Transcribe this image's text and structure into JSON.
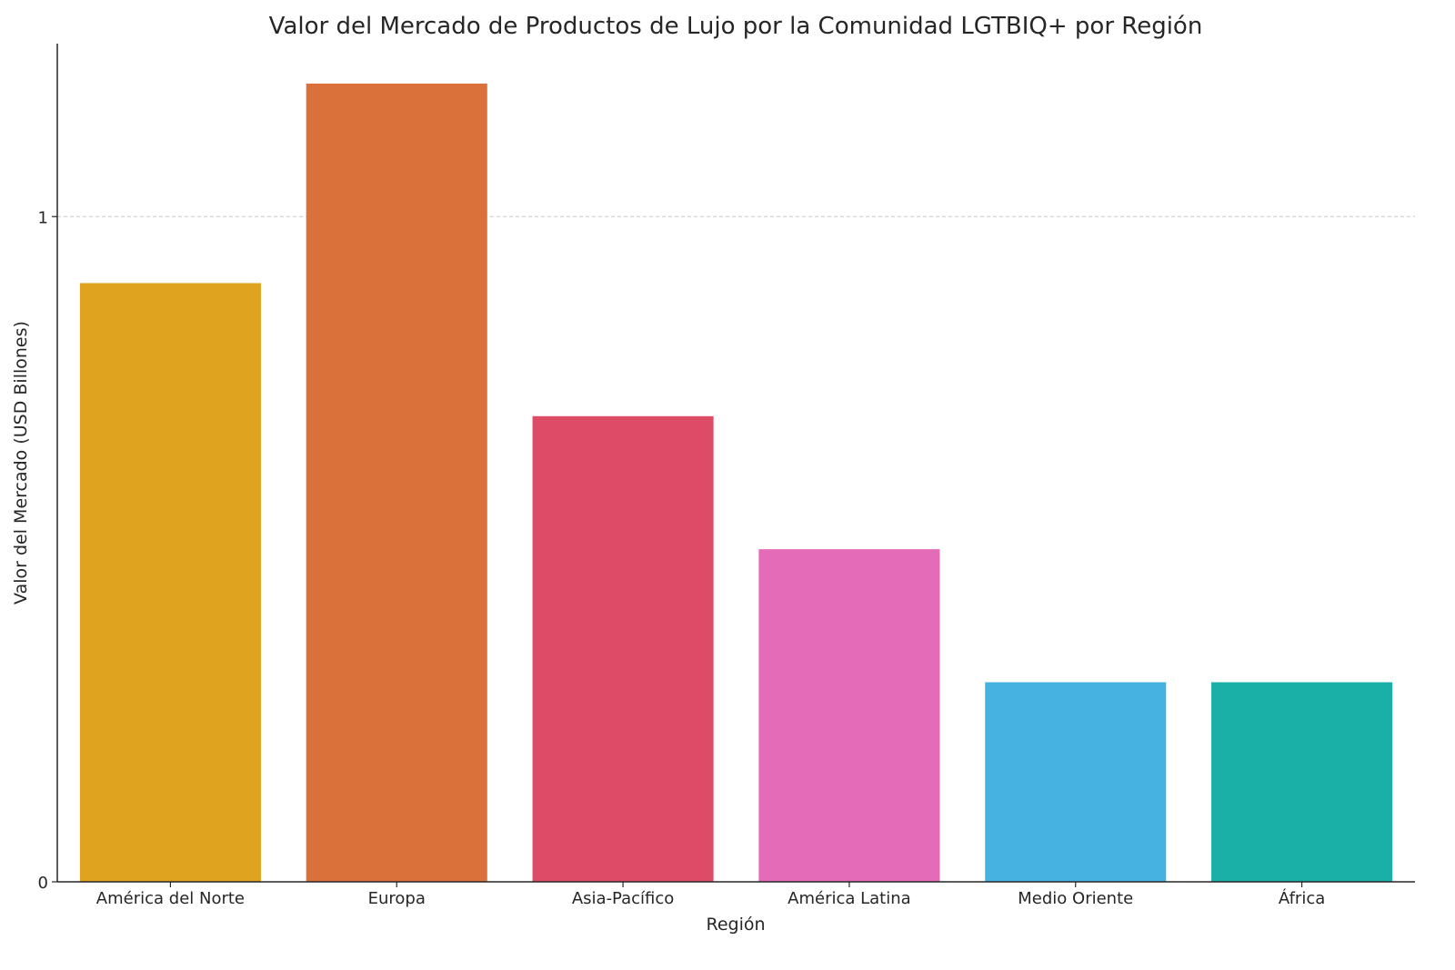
{
  "chart_data": {
    "type": "bar",
    "title": "Valor del Mercado de Productos de Lujo por la Comunidad LGTBIQ+ por Región",
    "xlabel": "Región",
    "ylabel": "Valor del Mercado (USD Billones)",
    "categories": [
      "América del Norte",
      "Europa",
      "Asia-Pacífico",
      "América Latina",
      "Medio Oriente",
      "África"
    ],
    "values": [
      0.9,
      1.2,
      0.7,
      0.5,
      0.3,
      0.3
    ],
    "colors": [
      "#E0A320",
      "#DB713A",
      "#DD4B67",
      "#E36BB7",
      "#45B2E2",
      "#1AB0A8"
    ],
    "yticks": [
      0,
      1
    ],
    "ytick_labels": [
      "0",
      "1"
    ],
    "ylim": [
      0,
      1.26
    ],
    "grid": "y-dashed",
    "legend": "none"
  }
}
